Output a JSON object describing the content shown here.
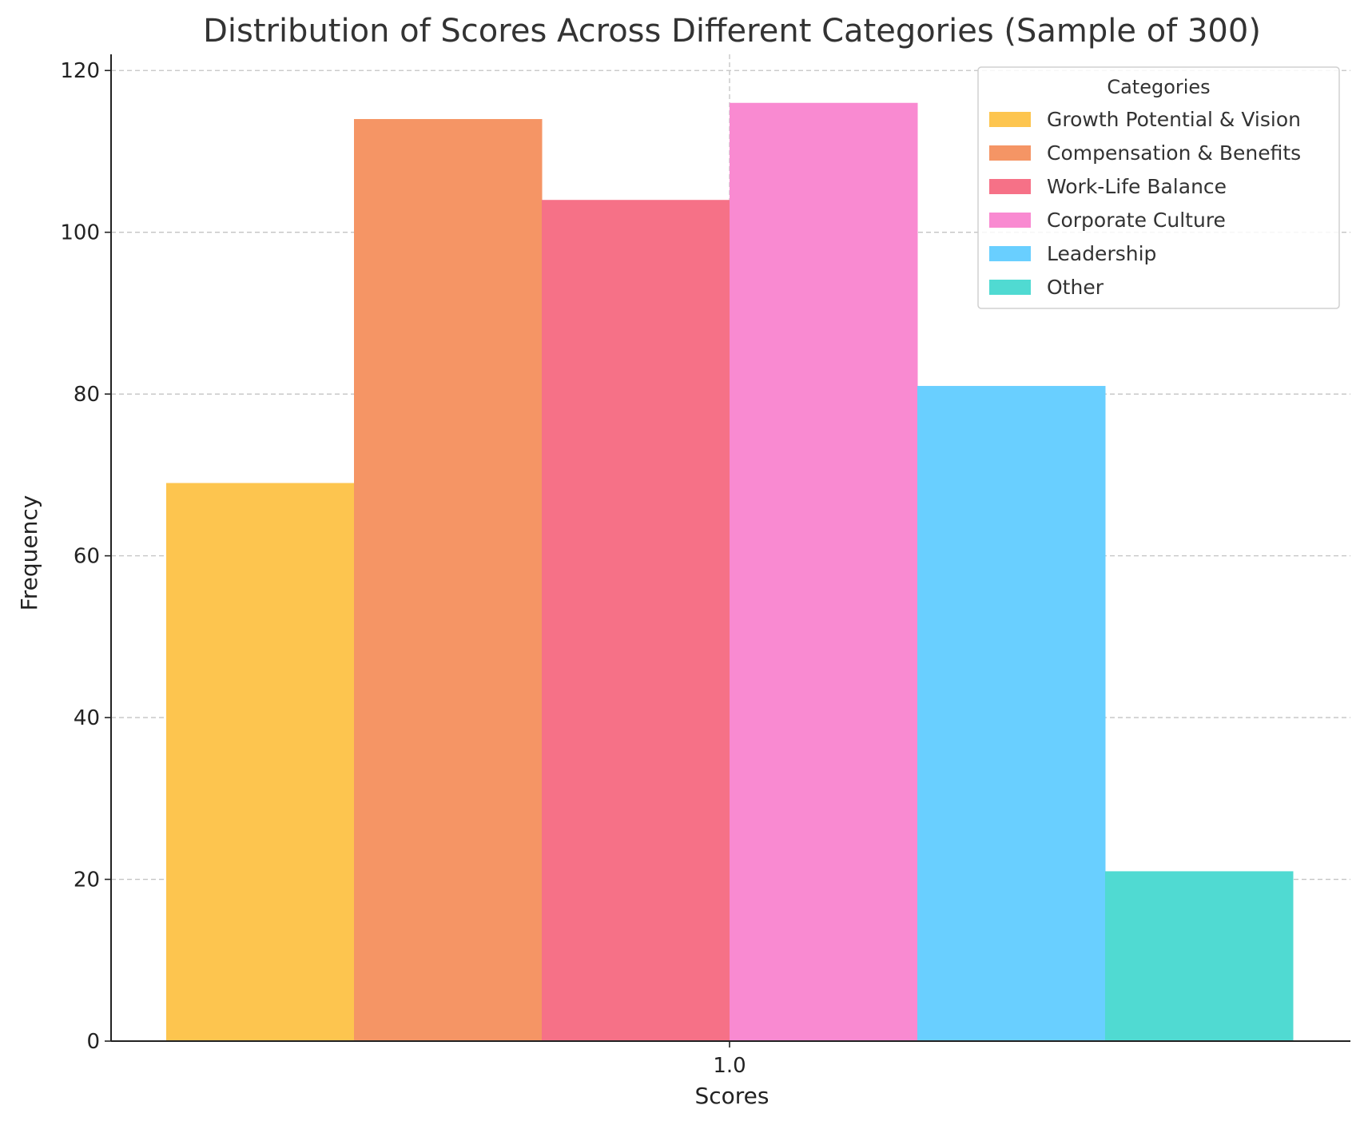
{
  "chart_data": {
    "type": "bar",
    "title": "Distribution of Scores Across Different Categories (Sample of 300)",
    "xlabel": "Scores",
    "ylabel": "Frequency",
    "x_ticks": [
      "1.0"
    ],
    "y_ticks": [
      0,
      20,
      40,
      60,
      80,
      100,
      120
    ],
    "ylim": [
      0,
      122
    ],
    "grid": true,
    "legend": {
      "title": "Categories",
      "placement": "top-right"
    },
    "series": [
      {
        "name": "Growth Potential & Vision",
        "value": 69,
        "color": "#fdc54f"
      },
      {
        "name": "Compensation & Benefits",
        "value": 114,
        "color": "#f59565"
      },
      {
        "name": "Work-Life Balance",
        "value": 104,
        "color": "#f67187"
      },
      {
        "name": "Corporate Culture",
        "value": 116,
        "color": "#f98ad1"
      },
      {
        "name": "Leadership",
        "value": 81,
        "color": "#69cfff"
      },
      {
        "name": "Other",
        "value": 21,
        "color": "#50dad2"
      }
    ]
  }
}
